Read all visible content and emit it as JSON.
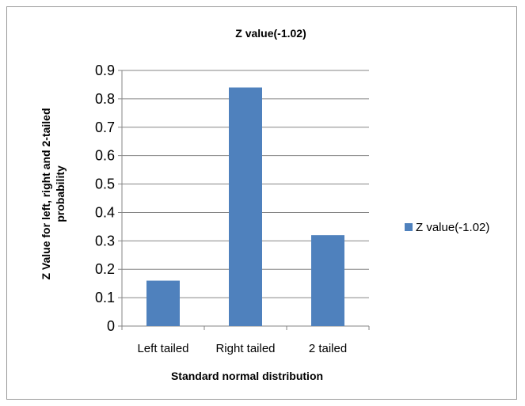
{
  "chart_data": {
    "type": "bar",
    "title": "Z value(-1.02)",
    "xlabel": "Standard normal distribution",
    "ylabel_lines": [
      "Z Value for left, right and 2-tailed",
      "probability"
    ],
    "categories": [
      "Left tailed",
      "Right tailed",
      "2 tailed"
    ],
    "series": [
      {
        "name": "Z value(-1.02)",
        "values": [
          0.16,
          0.84,
          0.32
        ]
      }
    ],
    "ylim": [
      0,
      0.9
    ],
    "yticks": [
      "0",
      "0.1",
      "0.2",
      "0.3",
      "0.4",
      "0.5",
      "0.6",
      "0.7",
      "0.8",
      "0.9"
    ],
    "grid": true,
    "legend_position": "right",
    "colors": {
      "bar": "#4f81bd",
      "grid": "#868686",
      "axis": "#868686"
    }
  }
}
